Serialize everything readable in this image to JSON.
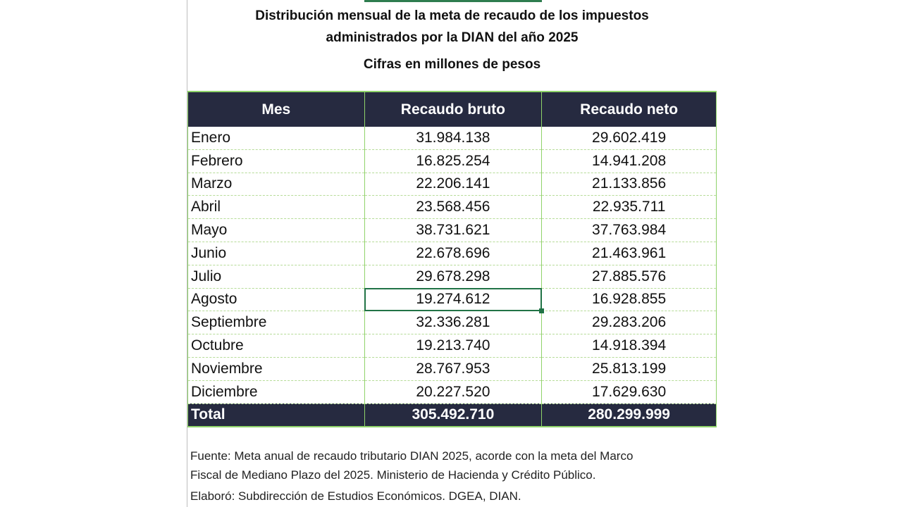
{
  "title_line1": "Distribución mensual de la meta de recaudo de los impuestos",
  "title_line2": "administrados por la DIAN del año 2025",
  "subtitle": "Cifras en millones de pesos",
  "columns": [
    "Mes",
    "Recaudo bruto",
    "Recaudo neto"
  ],
  "rows": [
    {
      "mes": "Enero",
      "bruto": "31.984.138",
      "neto": "29.602.419"
    },
    {
      "mes": "Febrero",
      "bruto": "16.825.254",
      "neto": "14.941.208"
    },
    {
      "mes": "Marzo",
      "bruto": "22.206.141",
      "neto": "21.133.856"
    },
    {
      "mes": "Abril",
      "bruto": "23.568.456",
      "neto": "22.935.711"
    },
    {
      "mes": "Mayo",
      "bruto": "38.731.621",
      "neto": "37.763.984"
    },
    {
      "mes": "Junio",
      "bruto": "22.678.696",
      "neto": "21.463.961"
    },
    {
      "mes": "Julio",
      "bruto": "29.678.298",
      "neto": "27.885.576"
    },
    {
      "mes": "Agosto",
      "bruto": "19.274.612",
      "neto": "16.928.855"
    },
    {
      "mes": "Septiembre",
      "bruto": "32.336.281",
      "neto": "29.283.206"
    },
    {
      "mes": "Octubre",
      "bruto": "19.213.740",
      "neto": "14.918.394"
    },
    {
      "mes": "Noviembre",
      "bruto": "28.767.953",
      "neto": "25.813.199"
    },
    {
      "mes": "Diciembre",
      "bruto": "20.227.520",
      "neto": "17.629.630"
    }
  ],
  "total": {
    "label": "Total",
    "bruto": "305.492.710",
    "neto": "280.299.999"
  },
  "footer": {
    "line1": "Fuente: Meta anual de recaudo tributario DIAN 2025, acorde con la meta del Marco",
    "line2": "Fiscal de Mediano Plazo del 2025. Ministerio de Hacienda y Crédito Público.",
    "line3": "Elaboró: Subdirección de Estudios Económicos. DGEA, DIAN."
  },
  "colors": {
    "header_bg": "#262a40",
    "grid": "#8fd36a",
    "selection": "#217346"
  }
}
